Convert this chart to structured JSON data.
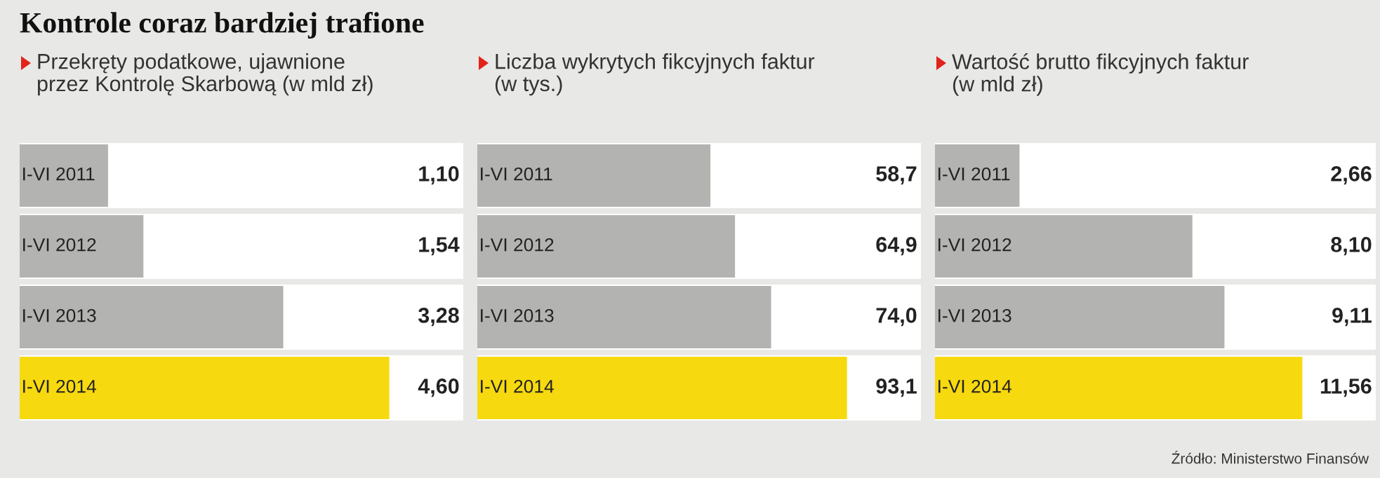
{
  "chart_data": [
    {
      "type": "bar",
      "orientation": "horizontal",
      "title": "Kontrole coraz bardziej trafione",
      "subtitle": "Przekręty podatkowe, ujawnione\nprzez Kontrolę Skarbową (w mld zł)",
      "categories": [
        "I-VI 2011",
        "I-VI 2012",
        "I-VI 2013",
        "I-VI 2014"
      ],
      "values": [
        1.1,
        1.54,
        3.28,
        4.6
      ],
      "value_labels": [
        "1,10",
        "1,54",
        "3,28",
        "4,60"
      ],
      "colors": [
        "#b3b3b1",
        "#b3b3b1",
        "#b3b3b1",
        "#f7d90f"
      ]
    },
    {
      "type": "bar",
      "orientation": "horizontal",
      "subtitle": "Liczba wykrytych fikcyjnych faktur\n(w tys.)",
      "categories": [
        "I-VI 2011",
        "I-VI 2012",
        "I-VI 2013",
        "I-VI 2014"
      ],
      "values": [
        58.7,
        64.9,
        74.0,
        93.1
      ],
      "value_labels": [
        "58,7",
        "64,9",
        "74,0",
        "93,1"
      ],
      "colors": [
        "#b3b3b1",
        "#b3b3b1",
        "#b3b3b1",
        "#f7d90f"
      ]
    },
    {
      "type": "bar",
      "orientation": "horizontal",
      "subtitle": "Wartość brutto fikcyjnych faktur\n(w mld zł)",
      "categories": [
        "I-VI 2011",
        "I-VI 2012",
        "I-VI 2013",
        "I-VI 2014"
      ],
      "values": [
        2.66,
        8.1,
        9.11,
        11.56
      ],
      "value_labels": [
        "2,66",
        "8,10",
        "9,11",
        "11,56"
      ],
      "colors": [
        "#b3b3b1",
        "#b3b3b1",
        "#b3b3b1",
        "#f7d90f"
      ],
      "annotations": [
        "Źródło: Ministerstwo Finansów"
      ]
    }
  ]
}
